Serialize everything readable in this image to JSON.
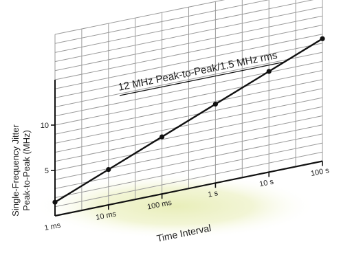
{
  "chart_data": {
    "type": "line",
    "title": "",
    "annotation": "12 MHz Peak-to-Peak/1.5 MHz rms",
    "xlabel": "Time Interval",
    "ylabel_line1": "Single-Frequency Jitter",
    "ylabel_line2": "Peak-to-Peak (MHz)",
    "x_scale": "log",
    "x_ticks": [
      "1 ms",
      "10 ms",
      "100 ms",
      "1 s",
      "10 s",
      "100 s"
    ],
    "y_ticks": [
      "5",
      "10"
    ],
    "ylim": [
      0,
      20
    ],
    "grid": true,
    "series": [
      {
        "x": [
          "1 ms",
          "10 ms",
          "100 ms",
          "1 s",
          "10 s",
          "100 s"
        ],
        "values": [
          1.5,
          3.9,
          6.3,
          8.7,
          11.1,
          13.5
        ]
      }
    ],
    "colors": {
      "line": "#111111",
      "grid": "#9a9a9a",
      "floor_glow": "#dfe7a6"
    }
  }
}
